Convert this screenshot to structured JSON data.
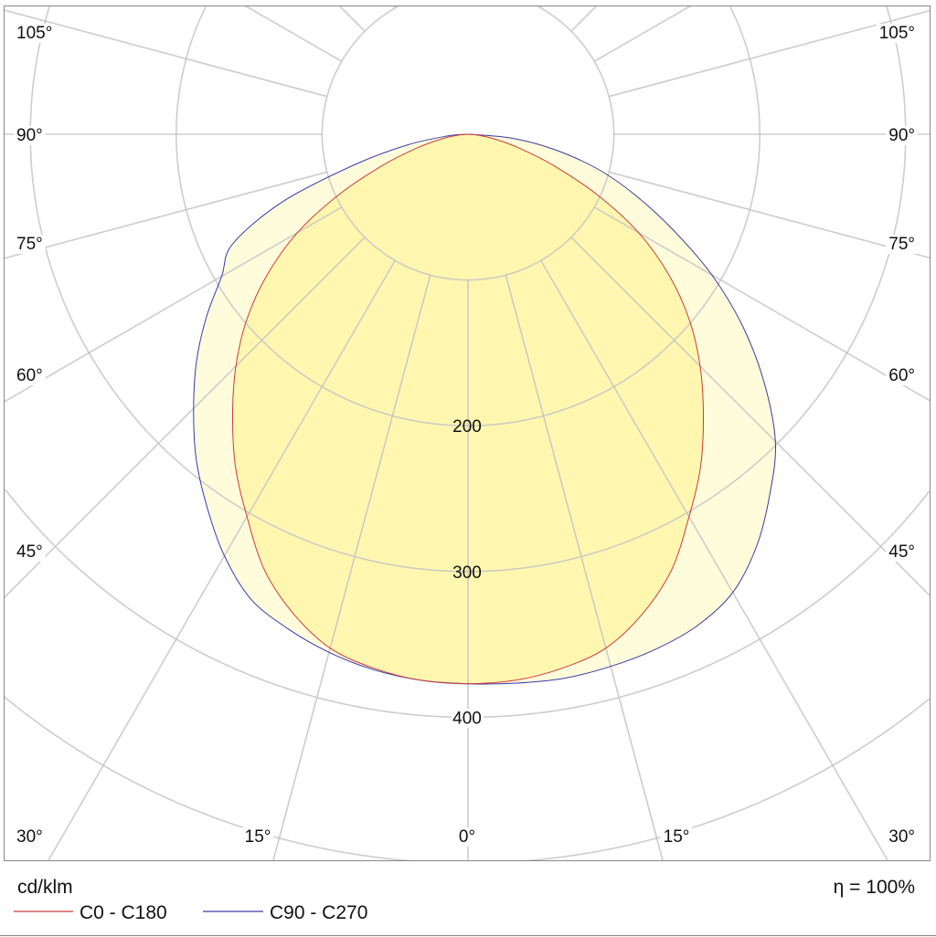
{
  "chart_data": {
    "type": "polar",
    "unit_label": "cd/klm",
    "efficiency_label": "η = 100%",
    "radial_ticks": [
      200,
      300,
      400
    ],
    "radial_grid": [
      100,
      200,
      300,
      400,
      500,
      600
    ],
    "angle_labels_left": [
      "105°",
      "90°",
      "75°",
      "60°",
      "45°",
      "30°"
    ],
    "angle_labels_bottom": [
      "15°",
      "0°",
      "15°"
    ],
    "angle_labels_right": [
      "105°",
      "90°",
      "75°",
      "60°",
      "45°",
      "30°"
    ],
    "angle_label_values": [
      105,
      90,
      75,
      60,
      45,
      30
    ],
    "angles": [
      0,
      5,
      10,
      15,
      20,
      25,
      30,
      35,
      40,
      45,
      50,
      55,
      60,
      65,
      70,
      75,
      80,
      85,
      90
    ],
    "grid": true,
    "legend_position": "bottom-left",
    "series": [
      {
        "name": "C0 - C180",
        "color": "#cc3a3a",
        "fill": "#fff7b0",
        "left": [
          377,
          376,
          372,
          365,
          350,
          330,
          303,
          278,
          251,
          225,
          198,
          168,
          135,
          97,
          62,
          36,
          18,
          6,
          0
        ],
        "right": [
          377,
          376,
          372,
          365,
          350,
          330,
          303,
          278,
          251,
          225,
          198,
          168,
          135,
          97,
          62,
          36,
          18,
          6,
          0
        ]
      },
      {
        "name": "C90 - C270",
        "color": "#3a3aa8",
        "fill": "#fffcdc",
        "left": [
          377,
          376,
          373,
          368,
          361,
          352,
          334,
          312,
          290,
          266,
          243,
          219,
          195,
          178,
          135,
          80,
          42,
          14,
          0
        ],
        "right": [
          377,
          378,
          379,
          378,
          376,
          372,
          363,
          345,
          322,
          298,
          265,
          230,
          193,
          155,
          122,
          92,
          60,
          30,
          0
        ]
      }
    ]
  }
}
